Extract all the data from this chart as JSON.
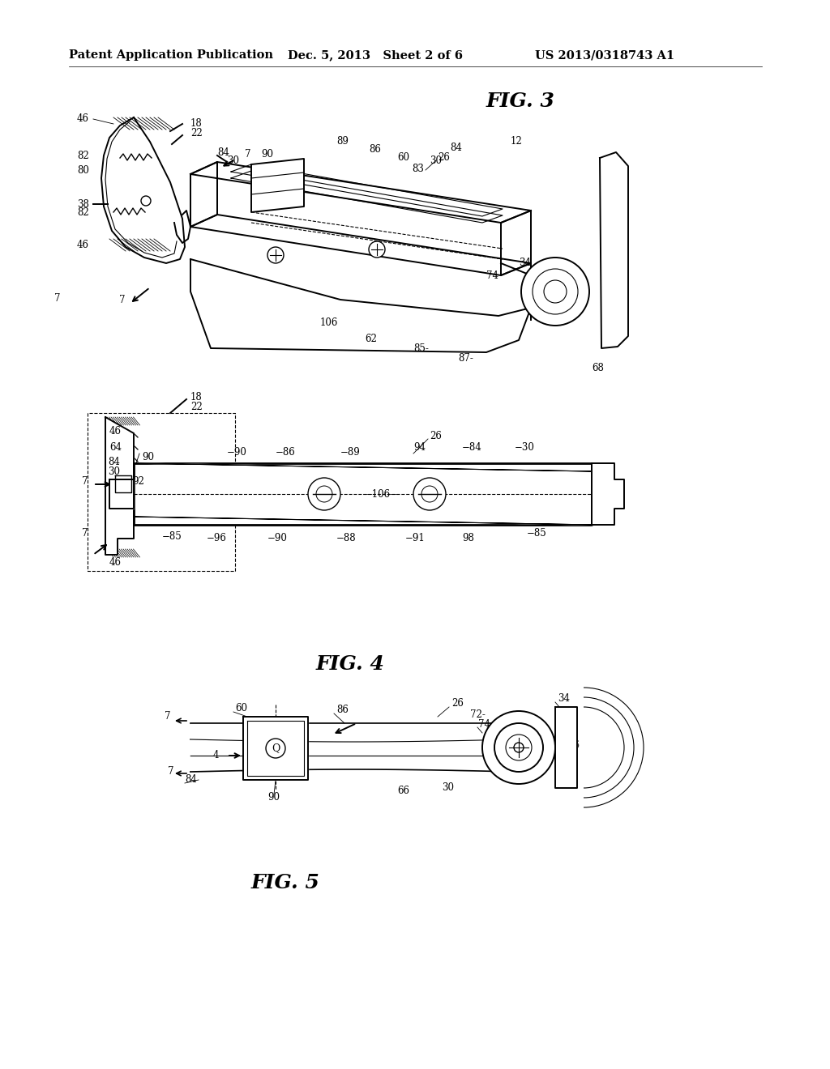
{
  "background_color": "#ffffff",
  "header_left": "Patent Application Publication",
  "header_center": "Dec. 5, 2013   Sheet 2 of 6",
  "header_right": "US 2013/0318743 A1",
  "header_fontsize": 10.5,
  "fig3_label": "FIG. 3",
  "fig4_label": "FIG. 4",
  "fig5_label": "FIG. 5",
  "line_color": "#000000",
  "lw_main": 1.4,
  "lw_thin": 0.8,
  "lw_thick": 2.0,
  "label_fontsize": 8.5,
  "fig_label_fontsize": 18
}
